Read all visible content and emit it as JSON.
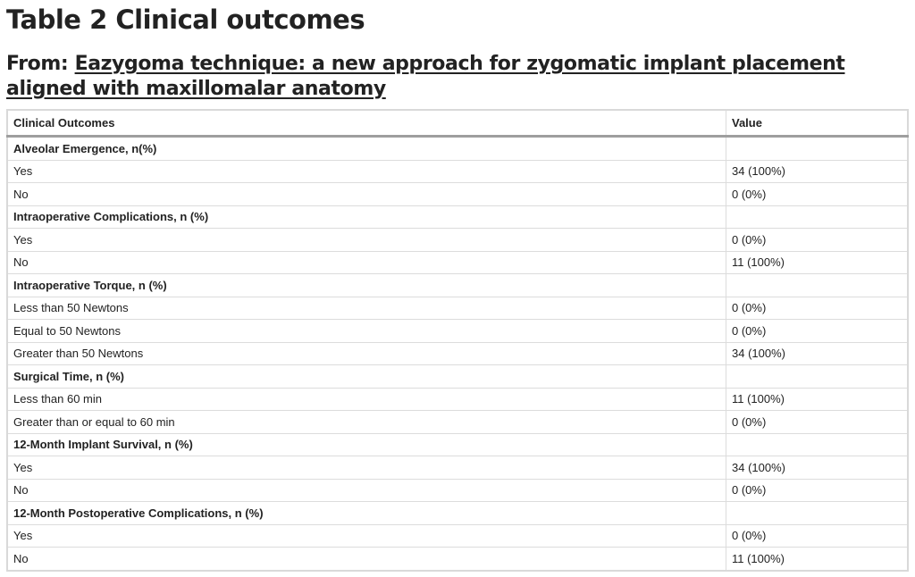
{
  "title": "Table 2 Clinical outcomes",
  "from": {
    "prefix": "From: ",
    "link_text": "Eazygoma technique: a new approach for zygomatic implant placement aligned with maxillomalar anatomy"
  },
  "table": {
    "headers": [
      "Clinical Outcomes",
      "Value"
    ],
    "rows": [
      {
        "label": "Alveolar Emergence, n(%)",
        "value": "",
        "group": true
      },
      {
        "label": "Yes",
        "value": "34 (100%)",
        "group": false
      },
      {
        "label": "No",
        "value": "0 (0%)",
        "group": false
      },
      {
        "label": "Intraoperative Complications, n (%)",
        "value": "",
        "group": true
      },
      {
        "label": "Yes",
        "value": "0 (0%)",
        "group": false
      },
      {
        "label": "No",
        "value": "11 (100%)",
        "group": false
      },
      {
        "label": "Intraoperative Torque, n (%)",
        "value": "",
        "group": true
      },
      {
        "label": "Less than 50 Newtons",
        "value": "0 (0%)",
        "group": false
      },
      {
        "label": "Equal to 50 Newtons",
        "value": "0 (0%)",
        "group": false
      },
      {
        "label": "Greater than 50 Newtons",
        "value": "34 (100%)",
        "group": false
      },
      {
        "label": "Surgical Time, n (%)",
        "value": "",
        "group": true
      },
      {
        "label": "Less than 60 min",
        "value": "11 (100%)",
        "group": false
      },
      {
        "label": "Greater than or equal to 60 min",
        "value": "0 (0%)",
        "group": false
      },
      {
        "label": "12-Month Implant Survival, n (%)",
        "value": "",
        "group": true
      },
      {
        "label": "Yes",
        "value": "34 (100%)",
        "group": false
      },
      {
        "label": "No",
        "value": "0 (0%)",
        "group": false
      },
      {
        "label": "12-Month Postoperative Complications, n (%)",
        "value": "",
        "group": true
      },
      {
        "label": "Yes",
        "value": "0 (0%)",
        "group": false
      },
      {
        "label": "No",
        "value": "11 (100%)",
        "group": false
      }
    ]
  }
}
